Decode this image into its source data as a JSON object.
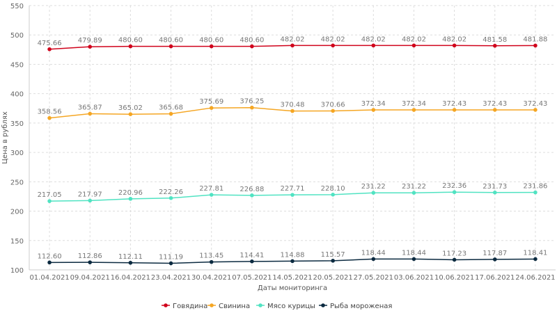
{
  "chart_data": {
    "type": "line",
    "title": "",
    "xlabel": "Даты мониторинга",
    "ylabel": "Цена в рублях",
    "ylim": [
      100,
      550
    ],
    "yticks": [
      100,
      150,
      200,
      250,
      300,
      350,
      400,
      450,
      500,
      550
    ],
    "grid": true,
    "legend_position": "bottom",
    "categories": [
      "01.04.2021",
      "09.04.2021",
      "16.04.2021",
      "23.04.2021",
      "30.04.2021",
      "07.05.2021",
      "14.05.2021",
      "20.05.2021",
      "27.05.2021",
      "03.06.2021",
      "10.06.2021",
      "17.06.2021",
      "24.06.2021"
    ],
    "series": [
      {
        "name": "Говядина",
        "color": "#d0021b",
        "values": [
          475.66,
          479.89,
          480.6,
          480.6,
          480.6,
          480.6,
          482.02,
          482.02,
          482.02,
          482.02,
          482.02,
          481.58,
          481.88
        ],
        "labels": [
          "475.66",
          "479.89",
          "480.60",
          "480.60",
          "480.60",
          "480.60",
          "482.02",
          "482.02",
          "482.02",
          "482.02",
          "482.02",
          "481.58",
          "481.88"
        ]
      },
      {
        "name": "Свинина",
        "color": "#f5a623",
        "values": [
          358.56,
          365.87,
          365.02,
          365.68,
          375.69,
          376.25,
          370.48,
          370.66,
          372.34,
          372.34,
          372.43,
          372.43,
          372.43
        ],
        "labels": [
          "358.56",
          "365.87",
          "365.02",
          "365.68",
          "375.69",
          "376.25",
          "370.48",
          "370.66",
          "372.34",
          "372.34",
          "372.43",
          "372.43",
          "372.43"
        ]
      },
      {
        "name": "Мясо курицы",
        "color": "#50e3c2",
        "values": [
          217.05,
          217.97,
          220.96,
          222.26,
          227.81,
          226.88,
          227.71,
          228.1,
          231.22,
          231.22,
          232.36,
          231.73,
          231.86
        ],
        "labels": [
          "217.05",
          "217.97",
          "220.96",
          "222.26",
          "227.81",
          "226.88",
          "227.71",
          "228.10",
          "231.22",
          "231.22",
          "232.36",
          "231.73",
          "231.86"
        ]
      },
      {
        "name": "Рыба мороженая",
        "color": "#0b2a40",
        "values": [
          112.6,
          112.86,
          112.11,
          111.19,
          113.45,
          114.41,
          114.88,
          115.57,
          118.44,
          118.44,
          117.23,
          117.87,
          118.41
        ],
        "labels": [
          "112.60",
          "112.86",
          "112.11",
          "111.19",
          "113.45",
          "114.41",
          "114.88",
          "115.57",
          "118.44",
          "118.44",
          "117.23",
          "117.87",
          "118.41"
        ]
      }
    ]
  }
}
